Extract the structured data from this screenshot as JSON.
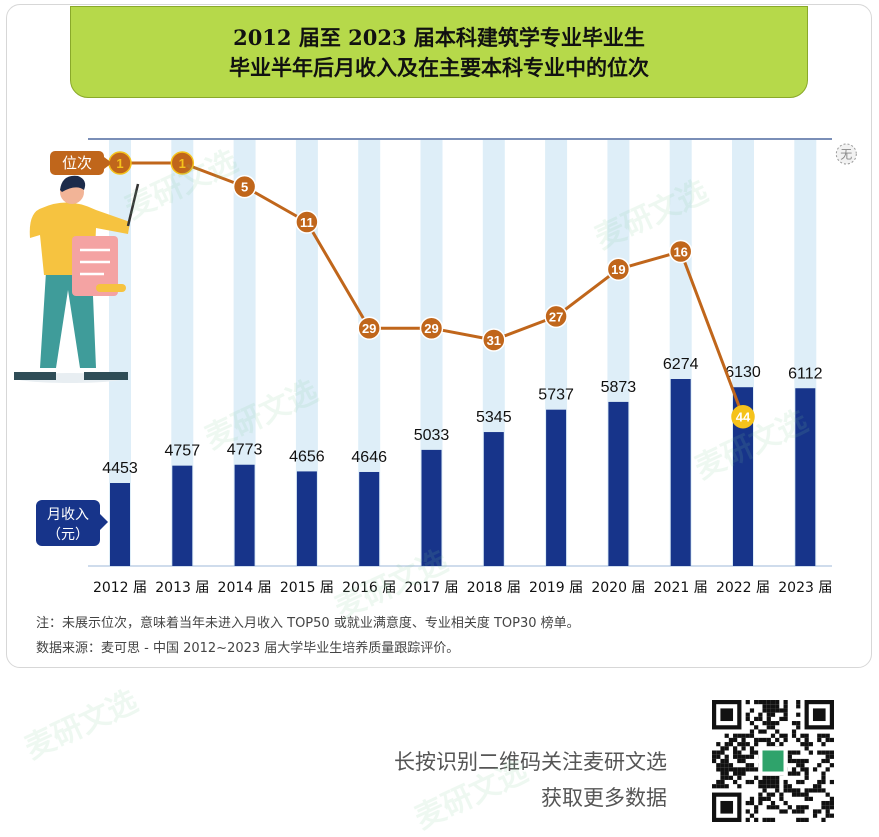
{
  "title": {
    "line1": "2012 届至 2023 届本科建筑学专业毕业生",
    "line2": "毕业半年后月收入及在主要本科专业中的位次"
  },
  "chart_data": {
    "type": "bar",
    "categories": [
      "2012 届",
      "2013 届",
      "2014 届",
      "2015 届",
      "2016 届",
      "2017 届",
      "2018 届",
      "2019 届",
      "2020 届",
      "2021 届",
      "2022 届",
      "2023 届"
    ],
    "series": [
      {
        "name": "月收入（元）",
        "type": "bar",
        "values": [
          4453,
          4757,
          4773,
          4656,
          4646,
          5033,
          5345,
          5737,
          5873,
          6274,
          6130,
          6112
        ]
      },
      {
        "name": "位次",
        "type": "line",
        "values": [
          1,
          1,
          5,
          11,
          29,
          29,
          31,
          27,
          19,
          16,
          44,
          null
        ],
        "missing_label": "无"
      }
    ],
    "bar_label": "月收入\n（元）",
    "rank_label": "位次",
    "colors": {
      "bar": "#17348a",
      "line": "#c0661b",
      "highlight": "#f5c21b",
      "stripe": "#deeef8",
      "title_bg": "#b6d94a"
    }
  },
  "notes": {
    "note1": "注：未展示位次，意味着当年未进入月收入 TOP50 或就业满意度、专业相关度 TOP30 榜单。",
    "note2": "数据来源：麦可思 - 中国 2012~2023 届大学毕业生培养质量跟踪评价。"
  },
  "promo": {
    "line1": "长按识别二维码关注麦研文选",
    "line2": "获取更多数据"
  },
  "watermark": "麦研文选"
}
